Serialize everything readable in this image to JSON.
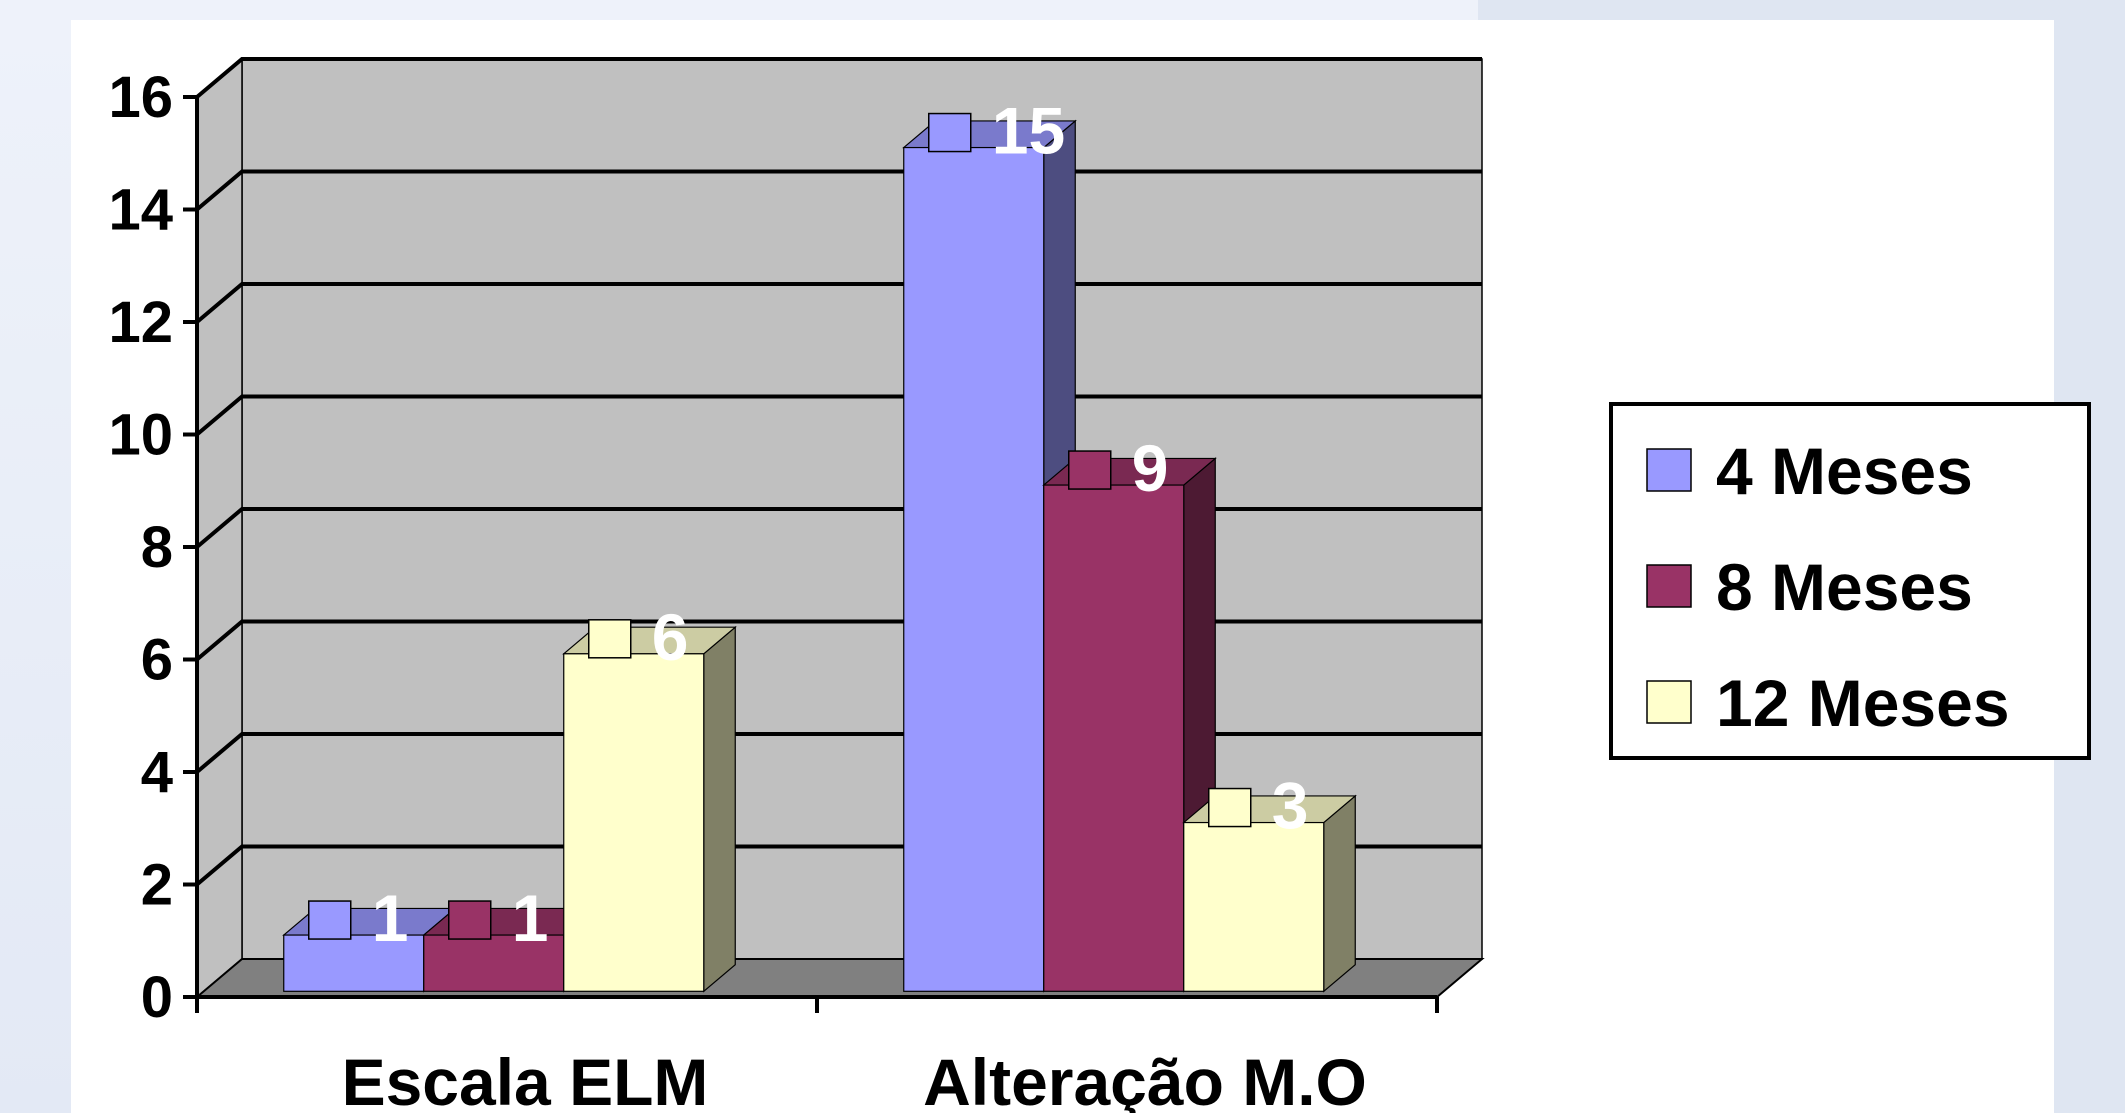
{
  "chart_data": {
    "type": "bar",
    "categories": [
      "Escala ELM",
      "Alteração M.O"
    ],
    "series": [
      {
        "name": "4 Meses",
        "values": [
          1,
          15
        ],
        "color": "#9999ff"
      },
      {
        "name": "8 Meses",
        "values": [
          1,
          9
        ],
        "color": "#993366"
      },
      {
        "name": "12 Meses",
        "values": [
          6,
          3
        ],
        "color": "#ffffcc"
      }
    ],
    "ylim": [
      0,
      16
    ],
    "yticks": [
      "0",
      "2",
      "4",
      "6",
      "8",
      "10",
      "12",
      "14",
      "16"
    ],
    "grid": true,
    "legend": "right",
    "style": "3d-clustered-column"
  }
}
